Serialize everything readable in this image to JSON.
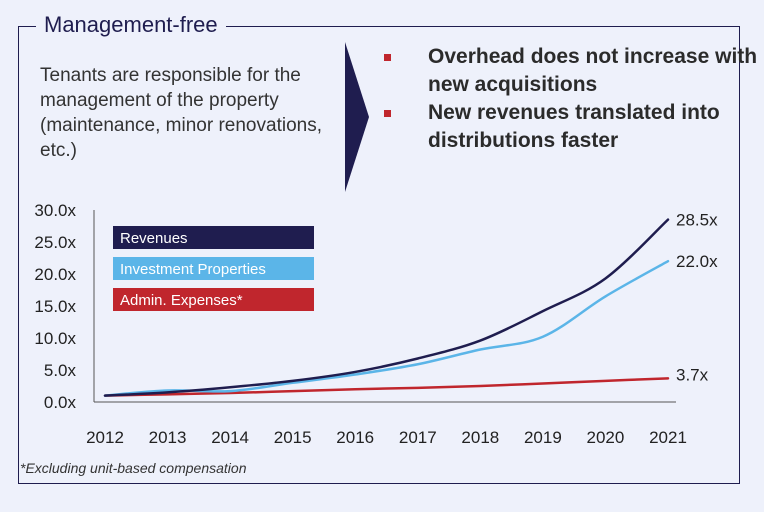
{
  "header": {
    "title": "Management-free",
    "description": "Tenants are responsible for the management of the property (maintenance, minor renovations, etc.)"
  },
  "bullets": [
    {
      "text": "Overhead does not increase with new acquisitions"
    },
    {
      "text": "New revenues translated into distributions faster"
    }
  ],
  "footnote": "*Excluding unit-based compensation",
  "colors": {
    "navy": "#1f1d4f",
    "light_blue": "#5bb5e8",
    "red": "#c0262d",
    "background": "#eef1fb"
  },
  "chart_data": {
    "type": "line",
    "categories": [
      "2012",
      "2013",
      "2014",
      "2015",
      "2016",
      "2017",
      "2018",
      "2019",
      "2020",
      "2021"
    ],
    "y_ticks": [
      "0.0x",
      "5.0x",
      "10.0x",
      "15.0x",
      "20.0x",
      "25.0x",
      "30.0x"
    ],
    "ylim": [
      0,
      30
    ],
    "legend_position": "top-left",
    "series": [
      {
        "name": "Revenues",
        "color": "#1f1d4f",
        "values": [
          1.0,
          1.5,
          2.3,
          3.3,
          4.7,
          6.8,
          9.6,
          14.2,
          19.3,
          28.5
        ],
        "end_label": "28.5x"
      },
      {
        "name": "Investment Properties",
        "color": "#5bb5e8",
        "values": [
          1.0,
          1.8,
          1.7,
          3.0,
          4.3,
          5.9,
          8.2,
          10.2,
          16.5,
          22.0
        ],
        "end_label": "22.0x"
      },
      {
        "name": "Admin. Expenses*",
        "color": "#c0262d",
        "values": [
          1.0,
          1.2,
          1.4,
          1.7,
          2.0,
          2.2,
          2.5,
          2.9,
          3.3,
          3.7
        ],
        "end_label": "3.7x"
      }
    ]
  }
}
